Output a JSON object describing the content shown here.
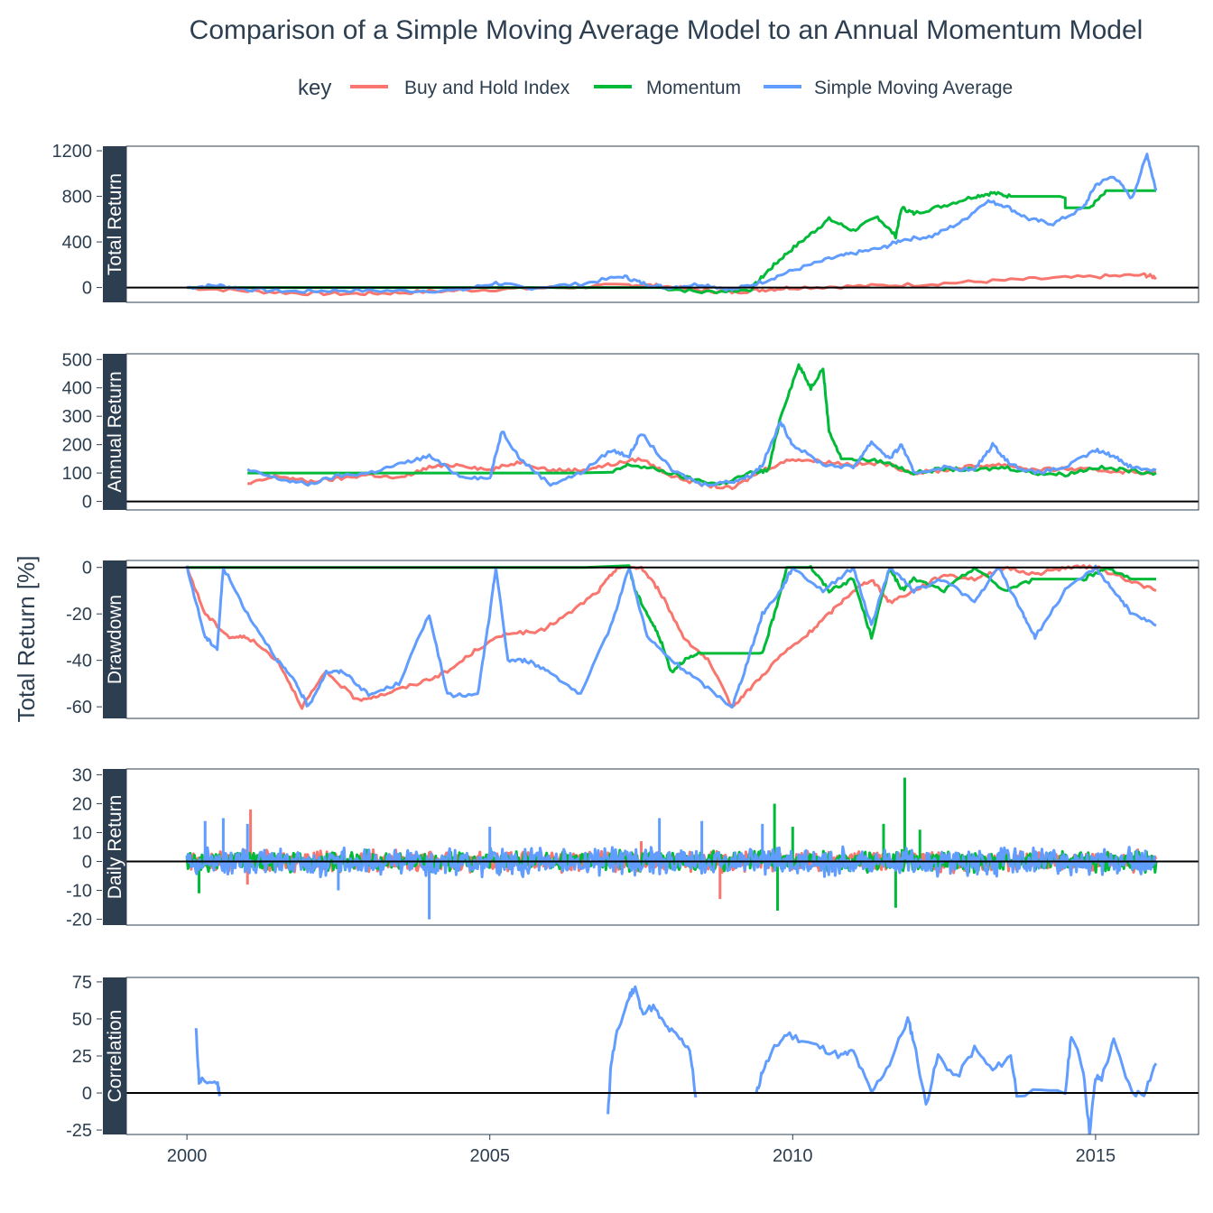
{
  "chart_data": {
    "type": "line",
    "title": "Comparison of a Simple Moving Average Model to an Annual Momentum Model",
    "ylabel": "Total Return [%]",
    "xlabel": "",
    "x_ticks": [
      2000,
      2005,
      2010,
      2015
    ],
    "x_range": [
      1999.0,
      2016.7
    ],
    "legend": {
      "title": "key",
      "position": "top",
      "entries": [
        {
          "name": "Buy and Hold Index",
          "color": "#f8766d"
        },
        {
          "name": "Momentum",
          "color": "#00ba38"
        },
        {
          "name": "Simple Moving Average",
          "color": "#619cff"
        }
      ]
    },
    "hline_at": 0,
    "panels": [
      {
        "name": "Total Return",
        "ylim": [
          -130,
          1240
        ],
        "yticks": [
          0,
          400,
          800,
          1200
        ],
        "series": [
          {
            "name": "Buy and Hold Index",
            "x": [
              2000.0,
              2001.0,
              2001.9,
              2002.8,
              2003.5,
              2004.5,
              2005.5,
              2006.5,
              2007.3,
              2007.8,
              2008.5,
              2009.0,
              2009.5,
              2010.0,
              2011.0,
              2012.0,
              2013.0,
              2014.0,
              2015.0,
              2015.8,
              2016.0
            ],
            "y": [
              0,
              -30,
              -50,
              -55,
              -45,
              -25,
              -10,
              5,
              25,
              15,
              -25,
              -40,
              -20,
              0,
              10,
              25,
              50,
              75,
              95,
              110,
              90
            ]
          },
          {
            "name": "Momentum",
            "x": [
              2000.0,
              2007.8,
              2008.5,
              2009.3,
              2009.6,
              2009.9,
              2010.3,
              2010.6,
              2011.0,
              2011.4,
              2011.7,
              2011.8,
              2012.0,
              2012.5,
              2013.0,
              2013.3,
              2013.6,
              2014.5,
              2014.5,
              2014.9,
              2015.2,
              2015.5,
              2016.0
            ],
            "y": [
              0,
              0,
              -40,
              -20,
              150,
              300,
              470,
              600,
              500,
              620,
              450,
              700,
              650,
              720,
              800,
              830,
              800,
              800,
              700,
              700,
              850,
              850,
              850
            ]
          },
          {
            "name": "Simple Moving Average",
            "x": [
              2000.0,
              2000.5,
              2001.0,
              2001.8,
              2002.5,
              2003.5,
              2004.5,
              2005.1,
              2005.6,
              2006.5,
              2007.2,
              2007.5,
              2007.9,
              2008.5,
              2009.0,
              2009.5,
              2010.0,
              2010.6,
              2011.0,
              2011.5,
              2011.8,
              2012.3,
              2012.8,
              2013.2,
              2013.5,
              2013.9,
              2014.3,
              2014.8,
              2015.0,
              2015.3,
              2015.6,
              2015.85,
              2016.0
            ],
            "y": [
              0,
              20,
              -15,
              -35,
              -25,
              -30,
              -25,
              40,
              -5,
              30,
              100,
              40,
              0,
              30,
              -20,
              50,
              150,
              250,
              300,
              350,
              420,
              450,
              580,
              760,
              720,
              600,
              560,
              700,
              900,
              980,
              780,
              1170,
              850
            ]
          }
        ]
      },
      {
        "name": "Annual Return",
        "ylim": [
          -30,
          520
        ],
        "yticks": [
          0,
          100,
          200,
          300,
          400,
          500
        ],
        "series": [
          {
            "name": "Buy and Hold Index",
            "x": [
              2001.0,
              2001.5,
              2002.0,
              2002.5,
              2003.0,
              2003.5,
              2004.0,
              2004.5,
              2005.0,
              2005.5,
              2006.0,
              2006.5,
              2007.0,
              2007.5,
              2008.0,
              2008.5,
              2009.0,
              2009.5,
              2010.0,
              2010.5,
              2011.0,
              2011.5,
              2012.0,
              2012.5,
              2013.0,
              2013.5,
              2014.0,
              2014.5,
              2015.0,
              2015.5,
              2016.0
            ],
            "y": [
              60,
              90,
              70,
              80,
              95,
              80,
              120,
              130,
              110,
              140,
              110,
              110,
              130,
              150,
              90,
              60,
              45,
              110,
              150,
              140,
              130,
              135,
              100,
              110,
              125,
              130,
              110,
              115,
              110,
              105,
              100
            ]
          },
          {
            "name": "Momentum",
            "x": [
              2001.0,
              2007.0,
              2007.3,
              2007.8,
              2008.3,
              2008.8,
              2009.3,
              2009.6,
              2009.8,
              2010.1,
              2010.3,
              2010.5,
              2010.6,
              2010.8,
              2011.0,
              2011.5,
              2012.0,
              2012.5,
              2013.0,
              2013.5,
              2014.0,
              2014.5,
              2015.0,
              2015.5,
              2016.0
            ],
            "y": [
              100,
              100,
              130,
              110,
              80,
              60,
              100,
              110,
              300,
              480,
              400,
              470,
              250,
              150,
              150,
              140,
              100,
              115,
              110,
              120,
              100,
              95,
              120,
              110,
              100
            ]
          },
          {
            "name": "Simple Moving Average",
            "x": [
              2001.0,
              2001.5,
              2002.0,
              2002.5,
              2003.0,
              2003.5,
              2004.0,
              2004.5,
              2005.0,
              2005.2,
              2005.5,
              2006.0,
              2006.5,
              2007.0,
              2007.3,
              2007.5,
              2008.0,
              2008.5,
              2009.0,
              2009.3,
              2009.5,
              2009.8,
              2010.0,
              2010.5,
              2011.0,
              2011.3,
              2011.6,
              2011.8,
              2012.0,
              2012.5,
              2013.0,
              2013.3,
              2013.6,
              2014.0,
              2014.5,
              2015.0,
              2015.3,
              2015.6,
              2016.0
            ],
            "y": [
              110,
              80,
              60,
              90,
              100,
              130,
              160,
              90,
              80,
              250,
              150,
              60,
              100,
              180,
              160,
              240,
              110,
              60,
              70,
              90,
              130,
              280,
              200,
              130,
              120,
              210,
              150,
              200,
              100,
              120,
              110,
              200,
              130,
              100,
              120,
              180,
              160,
              120,
              110
            ]
          }
        ]
      },
      {
        "name": "Drawdown",
        "ylim": [
          -65,
          3
        ],
        "yticks": [
          0,
          -20,
          -40,
          -60
        ],
        "series": [
          {
            "name": "Buy and Hold Index",
            "x": [
              2000.0,
              2000.3,
              2000.7,
              2001.0,
              2001.5,
              2001.9,
              2002.3,
              2002.8,
              2003.2,
              2003.8,
              2004.3,
              2004.8,
              2005.3,
              2005.8,
              2006.3,
              2006.8,
              2007.1,
              2007.5,
              2007.8,
              2008.2,
              2008.6,
              2009.0,
              2009.3,
              2009.8,
              2010.2,
              2010.6,
              2011.0,
              2011.3,
              2011.6,
              2012.0,
              2012.5,
              2013.0,
              2013.5,
              2014.0,
              2014.5,
              2015.0,
              2015.5,
              2016.0
            ],
            "y": [
              0,
              -20,
              -30,
              -30,
              -40,
              -60,
              -45,
              -57,
              -55,
              -50,
              -45,
              -35,
              -28,
              -28,
              -20,
              -10,
              0,
              0,
              -10,
              -30,
              -40,
              -60,
              -52,
              -38,
              -30,
              -20,
              -10,
              -5,
              -15,
              -10,
              -3,
              -5,
              0,
              -3,
              0,
              0,
              -5,
              -10
            ]
          },
          {
            "name": "Momentum",
            "x": [
              2000.0,
              2007.3,
              2007.4,
              2007.6,
              2007.8,
              2008.0,
              2008.2,
              2008.5,
              2009.0,
              2009.5,
              2009.7,
              2009.9,
              2010.3,
              2010.6,
              2011.0,
              2011.3,
              2011.6,
              2011.8,
              2012.0,
              2012.5,
              2013.0,
              2013.5,
              2014.0,
              2014.5,
              2014.8,
              2015.2,
              2015.6,
              2016.0
            ],
            "y": [
              0,
              0,
              -10,
              -20,
              -30,
              -45,
              -40,
              -37,
              -37,
              -37,
              -20,
              0,
              0,
              -10,
              -5,
              -30,
              0,
              -10,
              -5,
              -10,
              0,
              -10,
              -5,
              -5,
              -5,
              0,
              -5,
              -5
            ]
          },
          {
            "name": "Simple Moving Average",
            "x": [
              2000.0,
              2000.3,
              2000.5,
              2000.6,
              2001.0,
              2001.5,
              2001.8,
              2002.0,
              2002.3,
              2002.6,
              2003.0,
              2003.5,
              2004.0,
              2004.3,
              2004.8,
              2005.0,
              2005.1,
              2005.3,
              2005.6,
              2006.0,
              2006.5,
              2007.0,
              2007.3,
              2007.6,
              2008.0,
              2008.5,
              2009.0,
              2009.2,
              2009.5,
              2009.8,
              2010.0,
              2010.5,
              2011.0,
              2011.3,
              2011.6,
              2012.0,
              2012.5,
              2013.0,
              2013.4,
              2013.8,
              2014.0,
              2014.5,
              2015.0,
              2015.3,
              2015.6,
              2016.0
            ],
            "y": [
              0,
              -30,
              -35,
              0,
              -20,
              -40,
              -50,
              -60,
              -45,
              -45,
              -55,
              -50,
              -20,
              -55,
              -55,
              -20,
              0,
              -40,
              -40,
              -45,
              -55,
              -25,
              0,
              -30,
              -40,
              -50,
              -60,
              -45,
              -20,
              -10,
              0,
              -10,
              0,
              -25,
              0,
              -10,
              -5,
              -15,
              0,
              -20,
              -30,
              -10,
              0,
              -10,
              -20,
              -25
            ]
          }
        ]
      },
      {
        "name": "Daily Return",
        "ylim": [
          -22,
          32
        ],
        "yticks": [
          30,
          20,
          10,
          0,
          -10,
          -20
        ],
        "series": [
          {
            "name": "Buy and Hold Index",
            "extremes": [
              [
                2001.05,
                18
              ],
              [
                2008.8,
                -13
              ],
              [
                2001.0,
                -8
              ],
              [
                2004.0,
                -6
              ],
              [
                2007.5,
                7
              ]
            ],
            "band": 3
          },
          {
            "name": "Momentum",
            "extremes": [
              [
                2011.85,
                29
              ],
              [
                2009.7,
                20
              ],
              [
                2011.5,
                13
              ],
              [
                2009.75,
                -17
              ],
              [
                2011.7,
                -16
              ],
              [
                2010.0,
                12
              ],
              [
                2012.1,
                11
              ],
              [
                2000.2,
                -11
              ]
            ],
            "band": 3
          },
          {
            "name": "Simple Moving Average",
            "extremes": [
              [
                2004.0,
                -20
              ],
              [
                2000.3,
                14
              ],
              [
                2000.6,
                15
              ],
              [
                2001.0,
                13
              ],
              [
                2005.0,
                12
              ],
              [
                2007.8,
                15
              ],
              [
                2008.5,
                14
              ],
              [
                2009.5,
                13
              ],
              [
                2002.5,
                -10
              ]
            ],
            "band": 4
          }
        ]
      },
      {
        "name": "Correlation",
        "ylim": [
          -28,
          78
        ],
        "yticks": [
          75,
          50,
          25,
          0,
          -25
        ],
        "series": [
          {
            "name": "Simple Moving Average",
            "segments": [
              {
                "x": [
                  2000.15,
                  2000.2,
                  2000.25,
                  2000.5,
                  2000.55
                ],
                "y": [
                  43,
                  8,
                  8,
                  7,
                  -2
                ]
              },
              {
                "x": [
                  2006.95,
                  2007.0,
                  2007.1,
                  2007.3,
                  2007.4,
                  2007.5,
                  2007.7,
                  2007.9,
                  2008.1,
                  2008.3,
                  2008.4
                ],
                "y": [
                  -15,
                  20,
                  40,
                  65,
                  72,
                  55,
                  58,
                  45,
                  38,
                  30,
                  -3
                ]
              },
              {
                "x": [
                  2009.4,
                  2009.5,
                  2009.7,
                  2009.9,
                  2010.2,
                  2010.5,
                  2010.8,
                  2011.0,
                  2011.3,
                  2011.6,
                  2011.9,
                  2012.0,
                  2012.2,
                  2012.4,
                  2012.7,
                  2013.0,
                  2013.3,
                  2013.6,
                  2013.7,
                  2014.5,
                  2014.6,
                  2014.8,
                  2014.9,
                  2015.0,
                  2015.1,
                  2015.3,
                  2015.6,
                  2015.8,
                  2016.0
                ],
                "y": [
                  -1,
                  15,
                  30,
                  40,
                  35,
                  30,
                  25,
                  28,
                  0,
                  20,
                  50,
                  35,
                  -8,
                  25,
                  10,
                  30,
                  15,
                  25,
                  0,
                  0,
                  40,
                  15,
                  -27,
                  10,
                  10,
                  35,
                  0,
                  0,
                  20
                ]
              }
            ]
          }
        ]
      }
    ]
  }
}
